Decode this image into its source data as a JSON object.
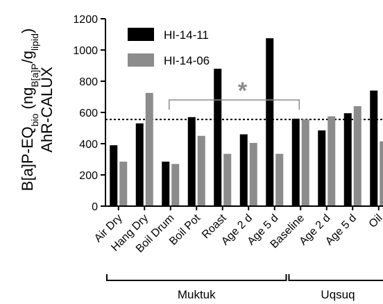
{
  "chart_data": {
    "type": "bar",
    "ylabel": {
      "line1_prefix": "B[a]P-EQ",
      "line1_sub": "bio",
      "line1_paren_open": " (ng",
      "line1_sub2": "B[a]P",
      "line1_slash": "/g",
      "line1_sub3": "lipid",
      "line1_paren_close": ")",
      "line2": "AhR-CALUX"
    },
    "ylim": [
      0,
      1200
    ],
    "yticks": [
      "0",
      "200",
      "400",
      "600",
      "800",
      "1000",
      "1200"
    ],
    "categories": [
      "Air Dry",
      "Hang Dry",
      "Boil Drum",
      "Boil Pot",
      "Roast",
      "Age 2 d",
      "Age 5 d",
      "Baseline",
      "Age 2 d",
      "Age 5 d",
      "Oil"
    ],
    "series": [
      {
        "name": "HI-14-11",
        "color": "#000000",
        "values": [
          390,
          530,
          285,
          570,
          880,
          460,
          1075,
          560,
          485,
          595,
          740
        ]
      },
      {
        "name": "HI-14-06",
        "color": "#8c8c8c",
        "values": [
          285,
          725,
          270,
          450,
          335,
          405,
          335,
          555,
          575,
          640,
          415
        ]
      }
    ],
    "reference_line": {
      "value": 555,
      "style": "dotted"
    },
    "significance": {
      "symbol": "*",
      "from_category": 2,
      "to_category": 7,
      "bracket_value": 680
    },
    "groups": [
      {
        "label": "Muktuk",
        "from_category": 0,
        "to_category": 6
      },
      {
        "label": "Uqsuq",
        "from_category": 7,
        "to_category": 10
      }
    ]
  }
}
